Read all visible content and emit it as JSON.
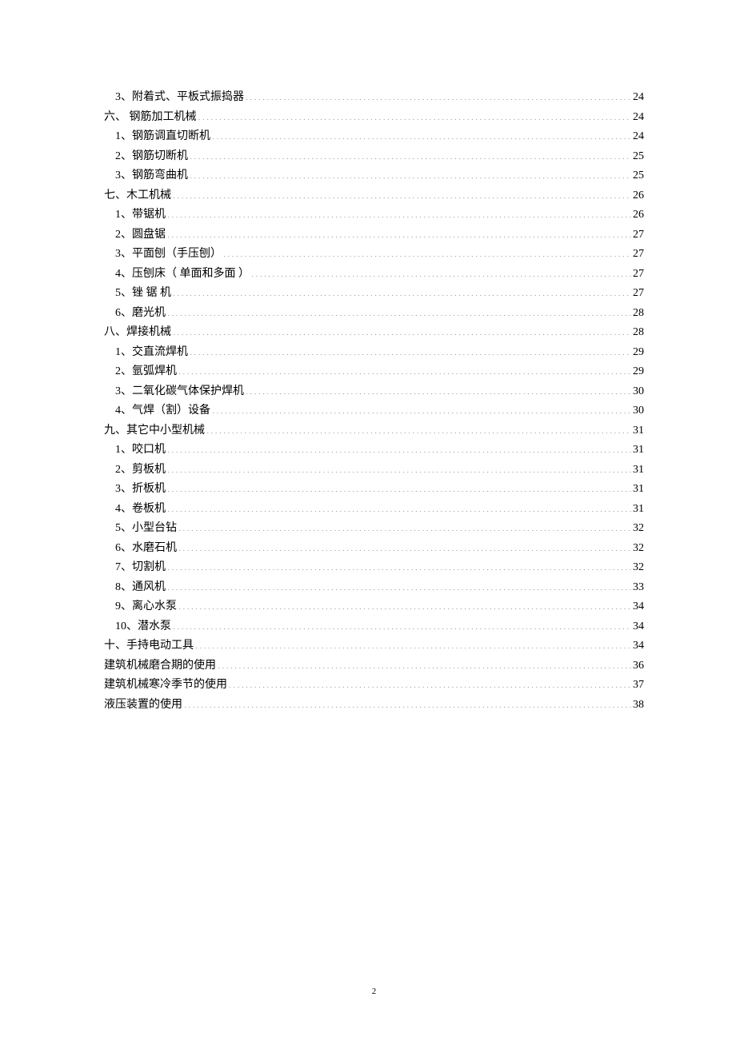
{
  "toc": [
    {
      "level": 2,
      "label": "3、附着式、平板式振捣器",
      "page": "24"
    },
    {
      "level": 1,
      "label": "六、 钢筋加工机械",
      "page": "24"
    },
    {
      "level": 2,
      "label": "1、钢筋调直切断机",
      "page": "24"
    },
    {
      "level": 2,
      "label": "2、钢筋切断机",
      "page": "25"
    },
    {
      "level": 2,
      "label": "3、钢筋弯曲机",
      "page": "25"
    },
    {
      "level": 1,
      "label": "七、木工机械",
      "page": "26"
    },
    {
      "level": 2,
      "label": "1、带锯机",
      "page": "26"
    },
    {
      "level": 2,
      "label": "2、圆盘锯",
      "page": "27"
    },
    {
      "level": 2,
      "label": "3、平面刨（手压刨）",
      "page": "27"
    },
    {
      "level": 2,
      "label": "4、压刨床（ 单面和多面 ）",
      "page": "27"
    },
    {
      "level": 2,
      "label": "5、锉 锯 机",
      "page": "27"
    },
    {
      "level": 2,
      "label": "6、磨光机",
      "page": "28"
    },
    {
      "level": 1,
      "label": "八、焊接机械",
      "page": "28"
    },
    {
      "level": 2,
      "label": "1、交直流焊机",
      "page": "29"
    },
    {
      "level": 2,
      "label": "2、氩弧焊机",
      "page": "29"
    },
    {
      "level": 2,
      "label": "3、二氧化碳气体保护焊机",
      "page": "30"
    },
    {
      "level": 2,
      "label": "4、气焊（割）设备",
      "page": "30"
    },
    {
      "level": 1,
      "label": "九、其它中小型机械",
      "page": "31"
    },
    {
      "level": 2,
      "label": "1、咬口机",
      "page": "31"
    },
    {
      "level": 2,
      "label": "2、剪板机",
      "page": "31"
    },
    {
      "level": 2,
      "label": "3、折板机",
      "page": "31"
    },
    {
      "level": 2,
      "label": "4、卷板机",
      "page": "31"
    },
    {
      "level": 2,
      "label": "5、小型台钻",
      "page": "32"
    },
    {
      "level": 2,
      "label": "6、水磨石机",
      "page": "32"
    },
    {
      "level": 2,
      "label": "7、切割机",
      "page": "32"
    },
    {
      "level": 2,
      "label": "8、通风机",
      "page": "33"
    },
    {
      "level": 2,
      "label": "9、离心水泵",
      "page": "34"
    },
    {
      "level": 2,
      "label": "10、潜水泵",
      "page": "34"
    },
    {
      "level": 1,
      "label": "十、手持电动工具",
      "page": "34"
    },
    {
      "level": 1,
      "label": "建筑机械磨合期的使用",
      "page": "36"
    },
    {
      "level": 1,
      "label": "建筑机械寒冷季节的使用",
      "page": "37"
    },
    {
      "level": 1,
      "label": "液压装置的使用",
      "page": "38"
    }
  ],
  "footer": {
    "page_number": "2"
  }
}
